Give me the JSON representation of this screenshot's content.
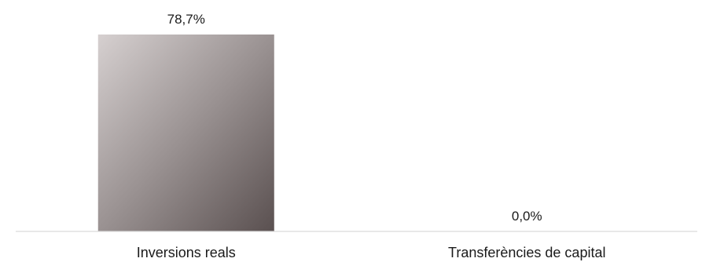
{
  "chart_data": {
    "type": "bar",
    "categories": [
      "Inversions reals",
      "Transferències de capital"
    ],
    "values": [
      78.7,
      0.0
    ],
    "data_labels": [
      "78,7%",
      "0,0%"
    ],
    "unit": "%",
    "title": "",
    "xlabel": "",
    "ylabel": "",
    "ylim": [
      0,
      78.7
    ],
    "grid": false,
    "legend": "none",
    "bar_gradient": [
      "#d6d0d0",
      "#9a9292",
      "#5a5050"
    ],
    "axis_color": "#d9d9d9",
    "text_color": "#1a1a1a"
  }
}
